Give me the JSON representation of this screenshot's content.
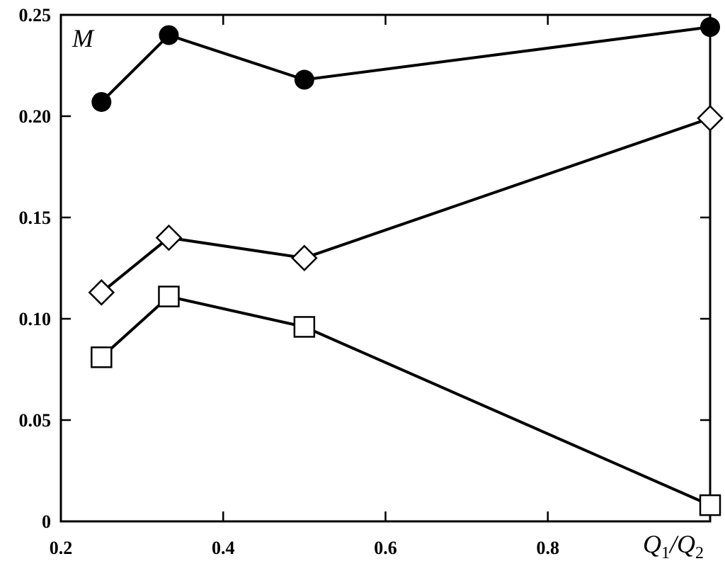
{
  "chart_data": {
    "type": "line",
    "title": "",
    "ylabel": "M",
    "xlabel": {
      "q1": "Q",
      "sub1": "1",
      "slash": "/",
      "q2": "Q",
      "sub2": "2"
    },
    "xlim": [
      0.2,
      1.0
    ],
    "ylim": [
      0,
      0.25
    ],
    "x_ticks": [
      0.2,
      0.4,
      0.6,
      0.8
    ],
    "x_tick_labels": [
      "0.2",
      "0.4",
      "0.6",
      "0.8"
    ],
    "y_ticks": [
      0,
      0.05,
      0.1,
      0.15,
      0.2,
      0.25
    ],
    "y_tick_labels": [
      "0",
      "0.05",
      "0.10",
      "0.15",
      "0.20",
      "0.25"
    ],
    "grid": false,
    "x": [
      0.25,
      0.333,
      0.5,
      1.0
    ],
    "series": [
      {
        "marker": "filled-circle",
        "values": [
          0.207,
          0.24,
          0.218,
          0.244
        ]
      },
      {
        "marker": "open-diamond",
        "values": [
          0.113,
          0.14,
          0.13,
          0.199
        ]
      },
      {
        "marker": "open-square",
        "values": [
          0.081,
          0.111,
          0.096,
          0.008
        ]
      }
    ],
    "colors": {
      "line": "#000000",
      "marker_fill_open": "#ffffff"
    }
  }
}
